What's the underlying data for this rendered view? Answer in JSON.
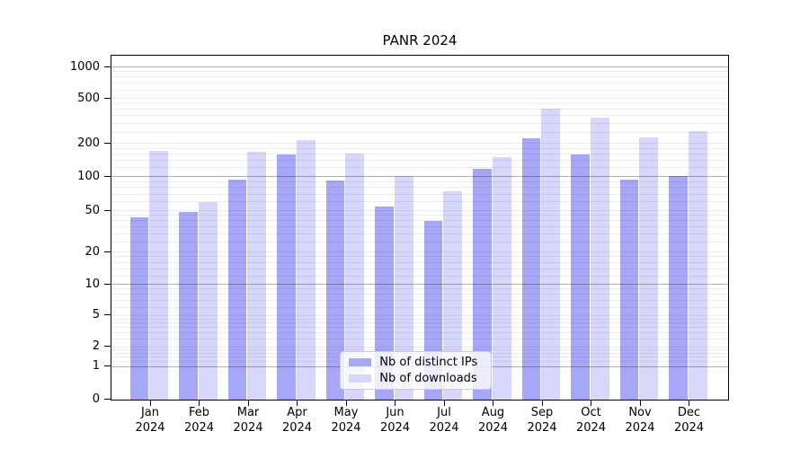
{
  "title": "PANR 2024",
  "legend": {
    "items": [
      {
        "label": "Nb of distinct IPs",
        "color": "#a7a7f7"
      },
      {
        "label": "Nb of downloads",
        "color": "#d7d7fb"
      }
    ]
  },
  "axes": {
    "y_tick_labels": [
      "0",
      "1",
      "2",
      "5",
      "10",
      "20",
      "50",
      "100",
      "200",
      "500",
      "1000"
    ],
    "x_month_labels": [
      "Jan",
      "Feb",
      "Mar",
      "Apr",
      "May",
      "Jun",
      "Jul",
      "Aug",
      "Sep",
      "Oct",
      "Nov",
      "Dec"
    ],
    "x_year_label": "2024"
  },
  "chart_data": {
    "type": "bar",
    "title": "PANR 2024",
    "categories": [
      "Jan 2024",
      "Feb 2024",
      "Mar 2024",
      "Apr 2024",
      "May 2024",
      "Jun 2024",
      "Jul 2024",
      "Aug 2024",
      "Sep 2024",
      "Oct 2024",
      "Nov 2024",
      "Dec 2024"
    ],
    "series": [
      {
        "name": "Nb of distinct IPs",
        "color": "#a7a7f7",
        "values": [
          43,
          48,
          93,
          158,
          91,
          54,
          39,
          117,
          218,
          158,
          93,
          100
        ]
      },
      {
        "name": "Nb of downloads",
        "color": "#d7d7fb",
        "values": [
          170,
          59,
          166,
          213,
          161,
          100,
          74,
          149,
          398,
          337,
          224,
          253
        ]
      }
    ],
    "yticks": [
      0,
      1,
      2,
      5,
      10,
      20,
      50,
      100,
      200,
      500,
      1000
    ],
    "ylim": [
      0,
      1500
    ],
    "yscale": "graded log (1-2-5 sequence), linear segment between 0 and 1",
    "grid": "horizontal minor + major lines, majors at 1, 10, 100, 1000, drawn above bars",
    "legend_position": "lower center inside plot",
    "xlabel": "",
    "ylabel": ""
  },
  "colors": {
    "dark_bar": "#a7a7f7",
    "light_bar": "#d7d7fb",
    "major_grid": "rgba(0,0,0,0.30)",
    "minor_grid": "rgba(0,0,0,0.07)",
    "spine": "#000000",
    "legend_border": "#cccccc",
    "background": "#ffffff"
  }
}
